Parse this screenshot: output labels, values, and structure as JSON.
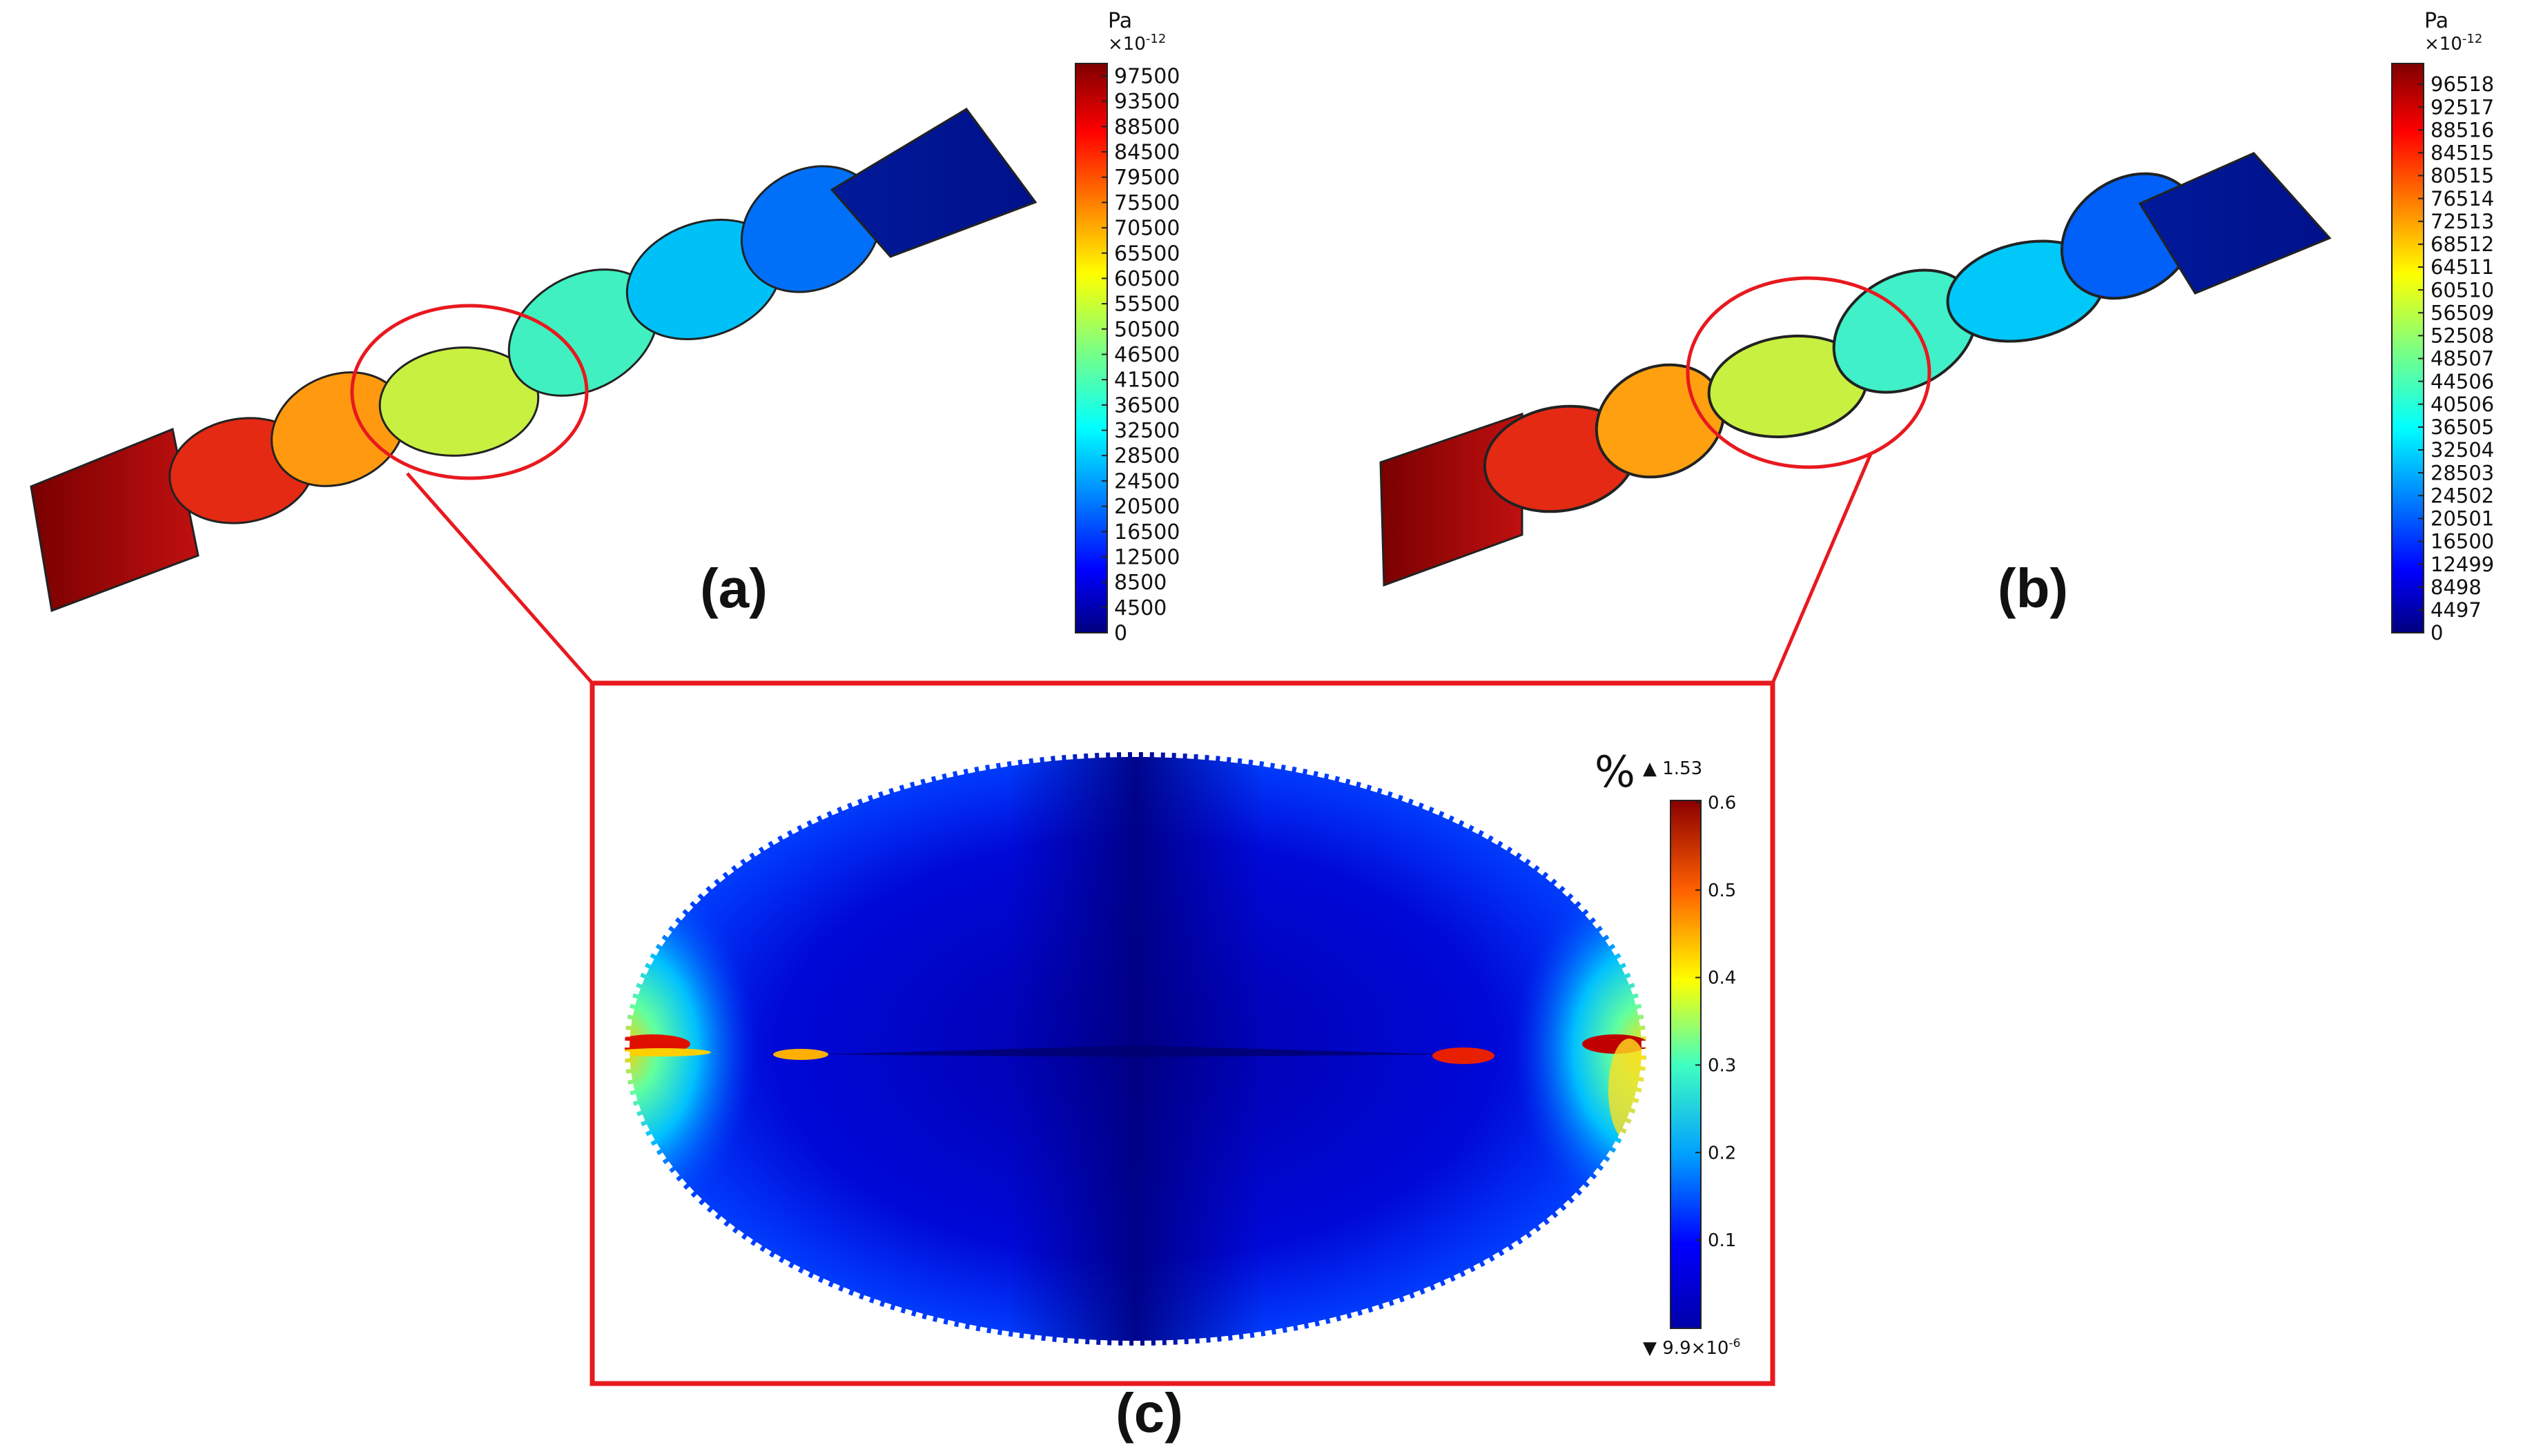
{
  "panels": {
    "a": {
      "label": "(a)",
      "unit": "Pa",
      "multiplier_base": "×10",
      "multiplier_exp": "-12",
      "ticks": [
        "97500",
        "93500",
        "88500",
        "84500",
        "79500",
        "75500",
        "70500",
        "65500",
        "60500",
        "55500",
        "50500",
        "46500",
        "41500",
        "36500",
        "32500",
        "28500",
        "24500",
        "20500",
        "16500",
        "12500",
        "8500",
        "4500",
        "0"
      ]
    },
    "b": {
      "label": "(b)",
      "unit": "Pa",
      "multiplier_base": "×10",
      "multiplier_exp": "-12",
      "ticks": [
        "96518",
        "92517",
        "88516",
        "84515",
        "80515",
        "76514",
        "72513",
        "68512",
        "64511",
        "60510",
        "56509",
        "52508",
        "48507",
        "44506",
        "40506",
        "36505",
        "32504",
        "28503",
        "24502",
        "20501",
        "16500",
        "12499",
        "8498",
        "4497",
        "0"
      ]
    },
    "c": {
      "label": "(c)",
      "unit": "%",
      "max_marker": "▲ 1.53",
      "min_marker_base": "▼ 9.9×10",
      "min_marker_exp": "-6",
      "ticks": [
        "0.6",
        "0.5",
        "0.4",
        "0.3",
        "0.2",
        "0.1"
      ]
    }
  },
  "colors": {
    "highlight": "#e8191f",
    "jet": [
      "#00007f",
      "#0000ff",
      "#007fff",
      "#00ffff",
      "#7fff7f",
      "#ffff00",
      "#ff7f00",
      "#ff0000",
      "#7f0000"
    ]
  }
}
